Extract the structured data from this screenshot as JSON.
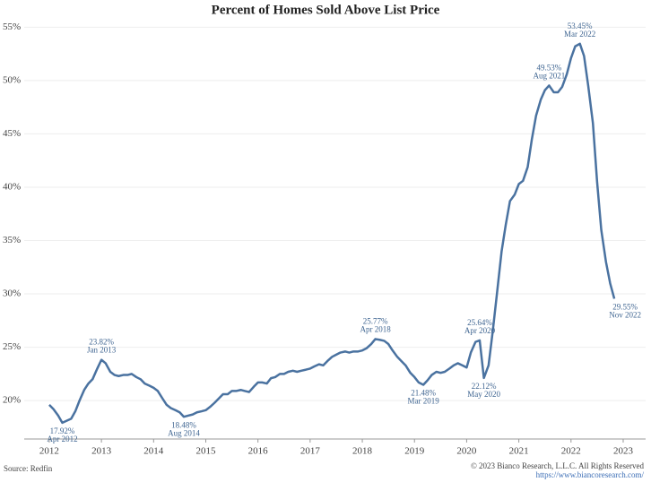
{
  "chart_data": {
    "type": "line",
    "title": "Percent of Homes Sold Above List Price",
    "source": "Source: Redfin",
    "copyright": "© 2023 Bianco Research, L.L.C. All Rights Reserved",
    "url": "https://www.biancoresearch.com/",
    "grid": true,
    "xlim": [
      2011.52,
      2023.43
    ],
    "xticks": [
      2012,
      2013,
      2014,
      2015,
      2016,
      2017,
      2018,
      2019,
      2020,
      2021,
      2022,
      2023
    ],
    "ylim": [
      16.4,
      55.7
    ],
    "yticks": [
      {
        "value": 20,
        "label": "20%"
      },
      {
        "value": 25,
        "label": "25%"
      },
      {
        "value": 30,
        "label": "30%"
      },
      {
        "value": 35,
        "label": "35%"
      },
      {
        "value": 40,
        "label": "40%"
      },
      {
        "value": 45,
        "label": "45%"
      },
      {
        "value": 50,
        "label": "50%"
      },
      {
        "value": 55,
        "label": "55%"
      }
    ],
    "x": [
      2012.0,
      2012.08,
      2012.17,
      2012.25,
      2012.33,
      2012.42,
      2012.5,
      2012.58,
      2012.67,
      2012.75,
      2012.83,
      2012.92,
      2013.0,
      2013.08,
      2013.17,
      2013.25,
      2013.33,
      2013.42,
      2013.5,
      2013.58,
      2013.67,
      2013.75,
      2013.83,
      2013.92,
      2014.0,
      2014.08,
      2014.17,
      2014.25,
      2014.33,
      2014.42,
      2014.5,
      2014.58,
      2014.67,
      2014.75,
      2014.83,
      2014.92,
      2015.0,
      2015.08,
      2015.17,
      2015.25,
      2015.33,
      2015.42,
      2015.5,
      2015.58,
      2015.67,
      2015.75,
      2015.83,
      2015.92,
      2016.0,
      2016.08,
      2016.17,
      2016.25,
      2016.33,
      2016.42,
      2016.5,
      2016.58,
      2016.67,
      2016.75,
      2016.83,
      2016.92,
      2017.0,
      2017.08,
      2017.17,
      2017.25,
      2017.33,
      2017.42,
      2017.5,
      2017.58,
      2017.67,
      2017.75,
      2017.83,
      2017.92,
      2018.0,
      2018.08,
      2018.17,
      2018.25,
      2018.33,
      2018.42,
      2018.5,
      2018.58,
      2018.67,
      2018.75,
      2018.83,
      2018.92,
      2019.0,
      2019.08,
      2019.17,
      2019.25,
      2019.33,
      2019.42,
      2019.5,
      2019.58,
      2019.67,
      2019.75,
      2019.83,
      2019.92,
      2020.0,
      2020.08,
      2020.17,
      2020.25,
      2020.33,
      2020.42,
      2020.5,
      2020.58,
      2020.67,
      2020.75,
      2020.83,
      2020.92,
      2021.0,
      2021.08,
      2021.17,
      2021.25,
      2021.33,
      2021.42,
      2021.5,
      2021.58,
      2021.67,
      2021.75,
      2021.83,
      2021.92,
      2022.0,
      2022.08,
      2022.17,
      2022.25,
      2022.33,
      2022.42,
      2022.5,
      2022.58,
      2022.67,
      2022.75,
      2022.83
    ],
    "series": [
      {
        "color": "#4a72a0",
        "values": [
          19.6,
          19.2,
          18.6,
          17.92,
          18.1,
          18.3,
          19.0,
          20.0,
          21.0,
          21.6,
          22.0,
          23.0,
          23.82,
          23.5,
          22.7,
          22.4,
          22.3,
          22.4,
          22.4,
          22.5,
          22.2,
          22.0,
          21.6,
          21.4,
          21.2,
          20.9,
          20.2,
          19.6,
          19.3,
          19.1,
          18.9,
          18.48,
          18.6,
          18.7,
          18.9,
          19.0,
          19.1,
          19.4,
          19.8,
          20.2,
          20.6,
          20.6,
          20.9,
          20.9,
          21.0,
          20.9,
          20.8,
          21.3,
          21.7,
          21.7,
          21.6,
          22.1,
          22.2,
          22.5,
          22.5,
          22.7,
          22.8,
          22.7,
          22.8,
          22.9,
          23.0,
          23.2,
          23.4,
          23.3,
          23.7,
          24.1,
          24.3,
          24.5,
          24.6,
          24.5,
          24.6,
          24.6,
          24.7,
          24.9,
          25.3,
          25.77,
          25.7,
          25.6,
          25.3,
          24.7,
          24.1,
          23.7,
          23.3,
          22.6,
          22.2,
          21.7,
          21.48,
          21.9,
          22.4,
          22.7,
          22.6,
          22.7,
          23.0,
          23.3,
          23.5,
          23.3,
          23.1,
          24.5,
          25.5,
          25.64,
          22.12,
          23.3,
          26.5,
          30.0,
          34.0,
          36.5,
          38.7,
          39.3,
          40.3,
          40.6,
          41.9,
          44.5,
          46.7,
          48.2,
          49.1,
          49.53,
          48.9,
          48.9,
          49.4,
          50.6,
          52.1,
          53.2,
          53.45,
          52.3,
          49.5,
          46.0,
          40.5,
          36.0,
          33.0,
          31.0,
          29.55
        ]
      }
    ],
    "annotations": [
      {
        "x": 2012.25,
        "value": 17.92,
        "value_label": "17.92%",
        "date": "Apr 2012"
      },
      {
        "x": 2013.0,
        "value": 23.82,
        "value_label": "23.82%",
        "date": "Jan 2013"
      },
      {
        "x": 2014.58,
        "value": 18.48,
        "value_label": "18.48%",
        "date": "Aug 2014"
      },
      {
        "x": 2018.25,
        "value": 25.77,
        "value_label": "25.77%",
        "date": "Apr 2018"
      },
      {
        "x": 2019.17,
        "value": 21.48,
        "value_label": "21.48%",
        "date": "Mar 2019"
      },
      {
        "x": 2020.25,
        "value": 25.64,
        "value_label": "25.64%",
        "date": "Apr 2020"
      },
      {
        "x": 2020.33,
        "value": 22.12,
        "value_label": "22.12%",
        "date": "May 2020"
      },
      {
        "x": 2021.58,
        "value": 49.53,
        "value_label": "49.53%",
        "date": "Aug 2021"
      },
      {
        "x": 2022.17,
        "value": 53.45,
        "value_label": "53.45%",
        "date": "Mar 2022"
      },
      {
        "x": 2022.83,
        "value": 29.55,
        "value_label": "29.55%",
        "date": "Nov 2022"
      }
    ]
  }
}
